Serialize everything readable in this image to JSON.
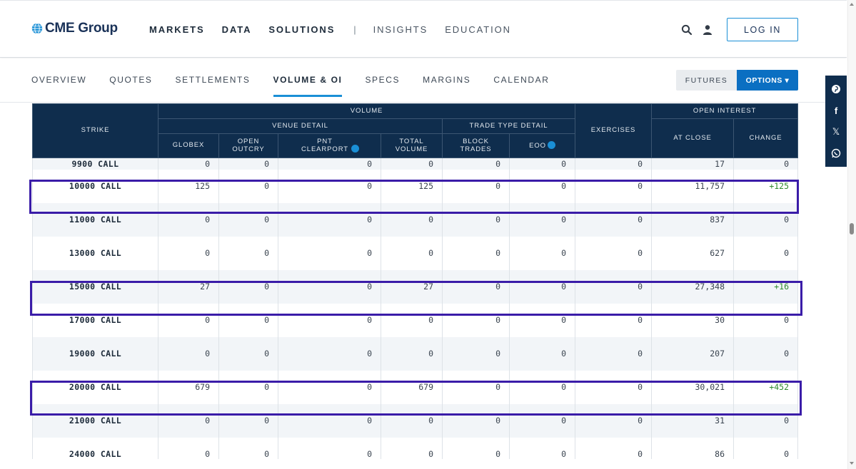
{
  "header": {
    "logo_text": "CME Group",
    "nav": [
      {
        "label": "MARKETS"
      },
      {
        "label": "DATA"
      },
      {
        "label": "SOLUTIONS"
      }
    ],
    "separator": "|",
    "nav_secondary": [
      {
        "label": "INSIGHTS"
      },
      {
        "label": "EDUCATION"
      }
    ],
    "login_label": "LOG IN"
  },
  "subnav": {
    "tabs": [
      {
        "label": "OVERVIEW"
      },
      {
        "label": "QUOTES"
      },
      {
        "label": "SETTLEMENTS"
      },
      {
        "label": "VOLUME & OI"
      },
      {
        "label": "SPECS"
      },
      {
        "label": "MARGINS"
      },
      {
        "label": "CALENDAR"
      }
    ],
    "active_tab": "VOLUME & OI",
    "futures_label": "FUTURES",
    "options_label": "OPTIONS ▾"
  },
  "share": {
    "items": [
      "pinterest-icon",
      "facebook-icon",
      "x-icon",
      "whatsapp-icon"
    ]
  },
  "table": {
    "headers": {
      "strike": "STRIKE",
      "volume": "VOLUME",
      "venue_detail": "VENUE DETAIL",
      "trade_type_detail": "TRADE TYPE DETAIL",
      "exercises": "EXERCISES",
      "open_interest": "OPEN INTEREST",
      "globex": "GLOBEX",
      "open_outcry": "OPEN OUTCRY",
      "pnt_clearport": "PNT CLEARPORT",
      "total_volume": "TOTAL VOLUME",
      "block_trades": "BLOCK TRADES",
      "eoo": "EOO",
      "at_close": "AT CLOSE",
      "change": "CHANGE"
    },
    "rows": [
      {
        "strike": "9900 CALL",
        "globex": "0",
        "open_outcry": "0",
        "pnt_clearport": "0",
        "total_volume": "0",
        "block_trades": "0",
        "eoo": "0",
        "exercises": "0",
        "at_close": "17",
        "change": "0"
      },
      {
        "strike": "10000 CALL",
        "globex": "125",
        "open_outcry": "0",
        "pnt_clearport": "0",
        "total_volume": "125",
        "block_trades": "0",
        "eoo": "0",
        "exercises": "0",
        "at_close": "11,757",
        "change": "+125"
      },
      {
        "strike": "11000 CALL",
        "globex": "0",
        "open_outcry": "0",
        "pnt_clearport": "0",
        "total_volume": "0",
        "block_trades": "0",
        "eoo": "0",
        "exercises": "0",
        "at_close": "837",
        "change": "0"
      },
      {
        "strike": "13000 CALL",
        "globex": "0",
        "open_outcry": "0",
        "pnt_clearport": "0",
        "total_volume": "0",
        "block_trades": "0",
        "eoo": "0",
        "exercises": "0",
        "at_close": "627",
        "change": "0"
      },
      {
        "strike": "15000 CALL",
        "globex": "27",
        "open_outcry": "0",
        "pnt_clearport": "0",
        "total_volume": "27",
        "block_trades": "0",
        "eoo": "0",
        "exercises": "0",
        "at_close": "27,348",
        "change": "+16"
      },
      {
        "strike": "17000 CALL",
        "globex": "0",
        "open_outcry": "0",
        "pnt_clearport": "0",
        "total_volume": "0",
        "block_trades": "0",
        "eoo": "0",
        "exercises": "0",
        "at_close": "30",
        "change": "0"
      },
      {
        "strike": "19000 CALL",
        "globex": "0",
        "open_outcry": "0",
        "pnt_clearport": "0",
        "total_volume": "0",
        "block_trades": "0",
        "eoo": "0",
        "exercises": "0",
        "at_close": "207",
        "change": "0"
      },
      {
        "strike": "20000 CALL",
        "globex": "679",
        "open_outcry": "0",
        "pnt_clearport": "0",
        "total_volume": "679",
        "block_trades": "0",
        "eoo": "0",
        "exercises": "0",
        "at_close": "30,021",
        "change": "+452"
      },
      {
        "strike": "21000 CALL",
        "globex": "0",
        "open_outcry": "0",
        "pnt_clearport": "0",
        "total_volume": "0",
        "block_trades": "0",
        "eoo": "0",
        "exercises": "0",
        "at_close": "31",
        "change": "0"
      },
      {
        "strike": "24000 CALL",
        "globex": "0",
        "open_outcry": "0",
        "pnt_clearport": "0",
        "total_volume": "0",
        "block_trades": "0",
        "eoo": "0",
        "exercises": "0",
        "at_close": "86",
        "change": "0"
      }
    ]
  },
  "colors": {
    "navy": "#0f2d4d",
    "accent_blue": "#1a8fd6",
    "options_blue": "#0b6fc2",
    "highlight_border": "#3a1ca8",
    "positive_change": "#2f8a2f"
  }
}
